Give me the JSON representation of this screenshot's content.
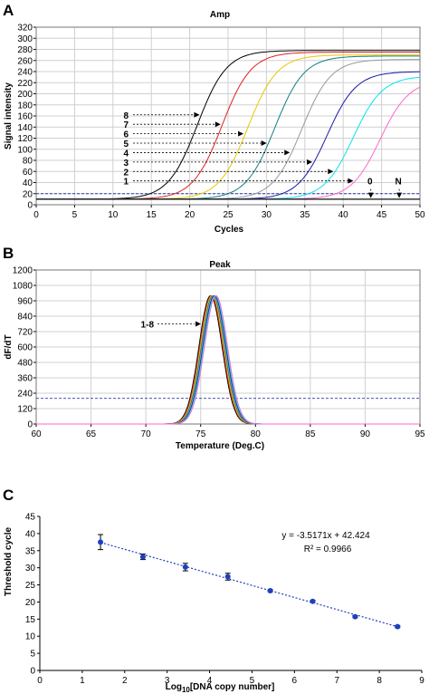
{
  "chart_data": [
    {
      "panel": "A",
      "type": "line",
      "title": "Amp",
      "xlabel": "Cycles",
      "ylabel": "Signal intensity",
      "xlim": [
        0,
        50
      ],
      "ylim": [
        0,
        320
      ],
      "xticks": [
        "0",
        "5",
        "10",
        "15",
        "20",
        "25",
        "30",
        "35",
        "40",
        "45",
        "50"
      ],
      "yticks": [
        "0",
        "20",
        "40",
        "60",
        "80",
        "100",
        "120",
        "140",
        "160",
        "180",
        "200",
        "220",
        "240",
        "260",
        "280",
        "300",
        "320"
      ],
      "grid": true,
      "threshold": 20,
      "series": [
        {
          "name": "8",
          "color": "#000000",
          "midpoint": 21.0,
          "plateau": 278
        },
        {
          "name": "7",
          "color": "#e02020",
          "midpoint": 24.2,
          "plateau": 275
        },
        {
          "name": "6",
          "color": "#e8c700",
          "midpoint": 27.6,
          "plateau": 270
        },
        {
          "name": "5",
          "color": "#108080",
          "midpoint": 31.1,
          "plateau": 268
        },
        {
          "name": "4",
          "color": "#999999",
          "midpoint": 34.6,
          "plateau": 262
        },
        {
          "name": "3",
          "color": "#1a1aa6",
          "midpoint": 37.9,
          "plateau": 240
        },
        {
          "name": "2",
          "color": "#00e5ee",
          "midpoint": 41.3,
          "plateau": 232
        },
        {
          "name": "1",
          "color": "#ff66cc",
          "midpoint": 44.8,
          "plateau": 225
        },
        {
          "name": "0",
          "color": "#000000",
          "flat": 10
        },
        {
          "name": "N",
          "color": "#000000",
          "flat": 10
        }
      ],
      "labels": [
        {
          "text": "8",
          "y": 162
        },
        {
          "text": "7",
          "y": 145
        },
        {
          "text": "6",
          "y": 128
        },
        {
          "text": "5",
          "y": 111
        },
        {
          "text": "4",
          "y": 94
        },
        {
          "text": "3",
          "y": 77
        },
        {
          "text": "2",
          "y": 60
        },
        {
          "text": "1",
          "y": 43
        },
        {
          "text": "0",
          "y": 43
        },
        {
          "text": "N",
          "y": 43
        }
      ]
    },
    {
      "panel": "B",
      "type": "line",
      "title": "Peak",
      "xlabel": "Temperature (Deg.C)",
      "ylabel": "dF/dT",
      "xlim": [
        60,
        95
      ],
      "ylim": [
        0,
        1200
      ],
      "xticks": [
        "60",
        "65",
        "70",
        "75",
        "80",
        "85",
        "90",
        "95"
      ],
      "yticks": [
        "0",
        "120",
        "240",
        "360",
        "480",
        "600",
        "720",
        "840",
        "960",
        "1080",
        "1200"
      ],
      "grid": true,
      "threshold": 200,
      "annotation": "1-8",
      "peak_temperature_range": [
        75.9,
        76.4
      ],
      "peak_height": 1000
    },
    {
      "panel": "C",
      "type": "scatter",
      "xlabel": "Log10[DNA copy number]",
      "xlabel_parts": {
        "pre": "Log",
        "sub": "10",
        "post": "[DNA copy number]"
      },
      "ylabel": "Threshold cycle",
      "xlim": [
        0,
        9
      ],
      "ylim": [
        0,
        45
      ],
      "xticks": [
        "0",
        "1",
        "2",
        "3",
        "4",
        "5",
        "6",
        "7",
        "8",
        "9"
      ],
      "yticks": [
        "0",
        "5",
        "10",
        "15",
        "20",
        "25",
        "30",
        "35",
        "40",
        "45"
      ],
      "grid": false,
      "x": [
        1.43,
        2.43,
        3.43,
        4.43,
        5.43,
        6.43,
        7.43,
        8.43
      ],
      "y": [
        37.5,
        33.2,
        30.2,
        27.4,
        23.3,
        20.2,
        15.7,
        12.8
      ],
      "error": [
        2.2,
        0.8,
        1.1,
        1.0,
        0.3,
        0.3,
        0.3,
        0.3
      ],
      "trendline": {
        "slope": -3.5171,
        "intercept": 42.424
      },
      "equation": "y = -3.5171x + 42.424",
      "r_squared": "R² = 0.9966",
      "color": "#1f3fbf"
    }
  ]
}
